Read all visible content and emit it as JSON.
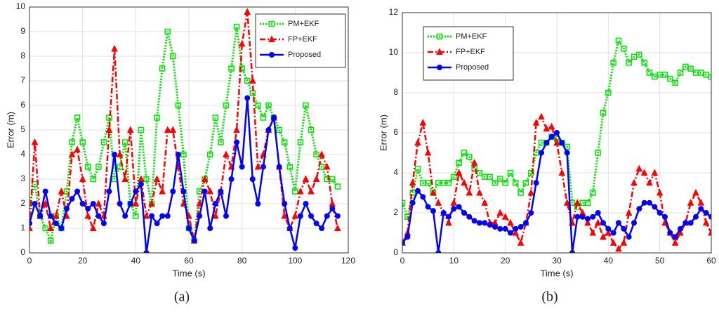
{
  "chart_data": [
    {
      "type": "line",
      "label": "(a)",
      "xlabel": "Time (s)",
      "ylabel": "Error (m)",
      "xlim": [
        0,
        120
      ],
      "ylim": [
        0,
        10
      ],
      "xticks": [
        0,
        20,
        40,
        60,
        80,
        100,
        120
      ],
      "yticks": [
        0,
        1,
        2,
        3,
        4,
        5,
        6,
        7,
        8,
        9,
        10
      ],
      "grid": true,
      "legend": "upper right",
      "x": [
        0,
        2,
        4,
        6,
        8,
        10,
        12,
        14,
        16,
        18,
        20,
        22,
        24,
        26,
        28,
        30,
        32,
        34,
        36,
        38,
        40,
        42,
        44,
        46,
        48,
        50,
        52,
        54,
        56,
        58,
        60,
        62,
        64,
        66,
        68,
        70,
        72,
        74,
        76,
        78,
        80,
        82,
        84,
        86,
        88,
        90,
        92,
        94,
        96,
        98,
        100,
        102,
        104,
        106,
        108,
        110,
        112,
        114,
        116
      ],
      "series": [
        {
          "name": "PM+EKF",
          "color": "#00e600",
          "marker": "square",
          "dash": "dotted",
          "values": [
            2.0,
            2.8,
            1.5,
            1.0,
            0.5,
            1.5,
            1.0,
            2.5,
            4.5,
            5.5,
            4.5,
            3.5,
            3.0,
            3.5,
            4.5,
            5.5,
            3.0,
            3.5,
            4.5,
            2.0,
            1.5,
            5.0,
            3.0,
            2.0,
            5.5,
            7.5,
            9.0,
            8.0,
            6.0,
            4.0,
            1.0,
            0.5,
            2.5,
            3.0,
            4.0,
            5.5,
            4.5,
            6.0,
            7.5,
            9.2,
            7.5,
            7.0,
            6.5,
            6.0,
            5.5,
            6.0,
            5.5,
            5.0,
            4.5,
            3.5,
            2.5,
            4.5,
            6.0,
            5.0,
            4.0,
            3.5,
            3.0,
            3.0,
            2.7
          ]
        },
        {
          "name": "FP+EKF",
          "color": "#ff0000",
          "marker": "triangle",
          "dash": "dashdot",
          "values": [
            1.0,
            4.5,
            1.5,
            2.0,
            1.0,
            1.5,
            2.5,
            1.5,
            4.0,
            4.2,
            3.0,
            1.5,
            1.0,
            2.0,
            1.5,
            5.0,
            8.3,
            4.0,
            3.0,
            5.0,
            2.0,
            3.0,
            1.5,
            2.0,
            3.0,
            2.5,
            5.0,
            5.0,
            3.5,
            2.0,
            1.5,
            0.5,
            2.0,
            3.0,
            2.5,
            1.5,
            2.5,
            4.0,
            3.5,
            5.0,
            8.5,
            9.8,
            7.0,
            3.5,
            4.0,
            5.0,
            5.5,
            3.5,
            1.5,
            1.0,
            1.5,
            2.5,
            3.0,
            2.5,
            3.0,
            4.0,
            3.5,
            2.0,
            1.0
          ]
        },
        {
          "name": "Proposed",
          "color": "#0000ff",
          "marker": "circle",
          "dash": "solid",
          "values": [
            1.2,
            2.0,
            1.5,
            2.5,
            1.5,
            1.2,
            1.0,
            1.8,
            2.2,
            2.5,
            2.0,
            1.8,
            2.0,
            1.5,
            1.2,
            2.5,
            4.0,
            2.0,
            1.5,
            2.0,
            2.5,
            2.8,
            0.0,
            1.5,
            1.2,
            1.5,
            1.5,
            2.5,
            4.0,
            2.5,
            1.0,
            0.5,
            1.5,
            2.5,
            1.0,
            2.0,
            2.5,
            1.5,
            3.0,
            4.5,
            3.5,
            6.3,
            3.0,
            2.0,
            3.5,
            5.0,
            5.5,
            3.5,
            2.0,
            1.0,
            0.2,
            1.5,
            2.0,
            1.5,
            1.2,
            1.0,
            1.5,
            1.8,
            1.5
          ]
        }
      ]
    },
    {
      "type": "line",
      "label": "(b)",
      "xlabel": "Time (s)",
      "ylabel": "Error (m)",
      "xlim": [
        0,
        60
      ],
      "ylim": [
        0,
        12
      ],
      "xticks": [
        0,
        10,
        20,
        30,
        40,
        50,
        60
      ],
      "yticks": [
        0,
        2,
        4,
        6,
        8,
        10,
        12
      ],
      "grid": true,
      "legend": "upper left",
      "x": [
        0,
        1,
        2,
        3,
        4,
        5,
        6,
        7,
        8,
        9,
        10,
        11,
        12,
        13,
        14,
        15,
        16,
        17,
        18,
        19,
        20,
        21,
        22,
        23,
        24,
        25,
        26,
        27,
        28,
        29,
        30,
        31,
        32,
        33,
        34,
        35,
        36,
        37,
        38,
        39,
        40,
        41,
        42,
        43,
        44,
        45,
        46,
        47,
        48,
        49,
        50,
        51,
        52,
        53,
        54,
        55,
        56,
        57,
        58,
        59,
        60
      ],
      "series": [
        {
          "name": "PM+EKF",
          "color": "#00e600",
          "marker": "square",
          "dash": "dotted",
          "values": [
            2.5,
            1.8,
            3.0,
            4.2,
            3.5,
            3.5,
            3.0,
            3.5,
            3.5,
            3.5,
            3.8,
            4.5,
            5.0,
            4.8,
            4.2,
            4.0,
            3.8,
            3.8,
            3.5,
            3.7,
            3.5,
            4.0,
            3.5,
            3.0,
            3.5,
            4.0,
            5.0,
            5.5,
            5.5,
            5.8,
            5.7,
            5.5,
            5.3,
            2.5,
            2.3,
            2.5,
            2.5,
            3.0,
            5.0,
            7.0,
            8.0,
            9.5,
            10.6,
            10.2,
            9.5,
            9.8,
            9.9,
            9.5,
            9.0,
            8.8,
            8.9,
            8.9,
            8.7,
            8.5,
            9.0,
            9.3,
            9.2,
            9.0,
            9.0,
            8.9,
            8.8
          ]
        },
        {
          "name": "FP+EKF",
          "color": "#ff0000",
          "marker": "triangle",
          "dash": "dashdot",
          "values": [
            0.5,
            1.0,
            3.5,
            5.5,
            6.5,
            5.0,
            3.0,
            2.5,
            2.0,
            1.5,
            2.5,
            4.0,
            3.5,
            3.0,
            4.5,
            3.0,
            2.5,
            1.5,
            1.5,
            2.0,
            1.8,
            1.5,
            1.0,
            0.5,
            1.5,
            3.0,
            6.5,
            6.8,
            6.2,
            6.3,
            5.5,
            4.0,
            2.5,
            1.5,
            2.5,
            2.0,
            1.5,
            1.0,
            1.5,
            0.8,
            1.0,
            0.5,
            0.2,
            0.5,
            2.0,
            3.5,
            4.2,
            4.0,
            3.5,
            4.0,
            3.0,
            1.5,
            1.0,
            0.5,
            1.0,
            1.5,
            2.5,
            3.0,
            2.5,
            1.5,
            1.0
          ]
        },
        {
          "name": "Proposed",
          "color": "#0000ff",
          "marker": "circle",
          "dash": "solid",
          "values": [
            0.5,
            0.8,
            2.5,
            3.1,
            2.8,
            2.3,
            2.1,
            0.0,
            2.0,
            1.8,
            2.2,
            2.3,
            2.0,
            1.8,
            1.6,
            1.5,
            1.5,
            1.4,
            1.3,
            1.2,
            1.2,
            1.0,
            1.2,
            1.3,
            1.5,
            2.0,
            3.5,
            5.0,
            5.5,
            5.8,
            6.0,
            5.5,
            5.0,
            0.0,
            1.8,
            1.8,
            1.7,
            1.8,
            2.0,
            1.5,
            1.2,
            1.0,
            1.5,
            1.2,
            0.8,
            1.5,
            2.2,
            2.5,
            2.5,
            2.3,
            2.0,
            1.8,
            1.0,
            0.8,
            1.2,
            1.5,
            1.5,
            1.8,
            2.2,
            2.0,
            1.8
          ]
        }
      ]
    }
  ]
}
